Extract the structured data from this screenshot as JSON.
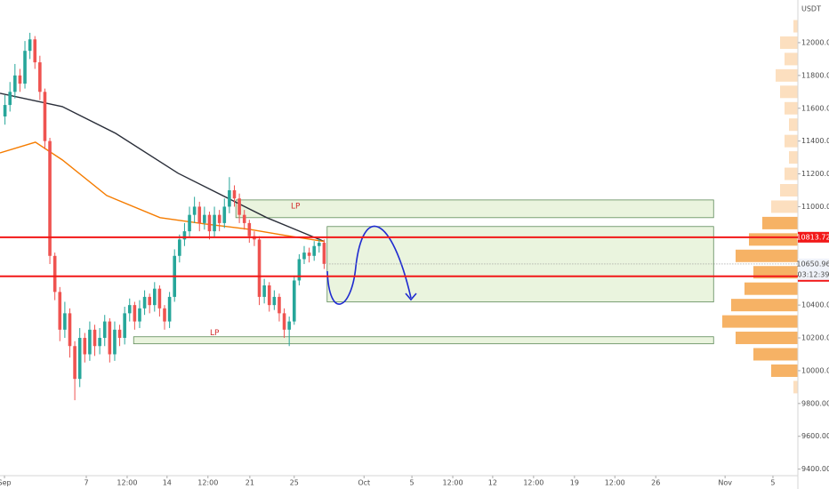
{
  "chart_data": {
    "type": "candlestick",
    "currency": "USDT",
    "xlim": [
      0,
      160
    ],
    "ylim": [
      9360,
      12260
    ],
    "xticks": [
      {
        "value": 0.9,
        "label": "Sep"
      },
      {
        "value": 17.3,
        "label": "7"
      },
      {
        "value": 25.5,
        "label": "12:00"
      },
      {
        "value": 33.5,
        "label": "14"
      },
      {
        "value": 41.7,
        "label": "12:00"
      },
      {
        "value": 50.1,
        "label": "21"
      },
      {
        "value": 59,
        "label": "25"
      },
      {
        "value": 73,
        "label": "Oct"
      },
      {
        "value": 82.6,
        "label": "5"
      },
      {
        "value": 90.8,
        "label": "12:00"
      },
      {
        "value": 98.8,
        "label": "12"
      },
      {
        "value": 107,
        "label": "12:00"
      },
      {
        "value": 115.2,
        "label": "19"
      },
      {
        "value": 123.3,
        "label": "12:00"
      },
      {
        "value": 131.5,
        "label": "26"
      },
      {
        "value": 145.4,
        "label": "Nov"
      },
      {
        "value": 155,
        "label": "5"
      }
    ],
    "yticks": [
      {
        "value": 9400,
        "label": "9400.00"
      },
      {
        "value": 9600,
        "label": "9600.00"
      },
      {
        "value": 9800,
        "label": "9800.00"
      },
      {
        "value": 10000,
        "label": "10000.00"
      },
      {
        "value": 10200,
        "label": "10200.00"
      },
      {
        "value": 10400,
        "label": "10400.00"
      },
      {
        "value": 10600,
        "label": "10600.00"
      },
      {
        "value": 10800,
        "label": "10800.00"
      },
      {
        "value": 11000,
        "label": "11000.00"
      },
      {
        "value": 11200,
        "label": "11200.00"
      },
      {
        "value": 11400,
        "label": "11400.00"
      },
      {
        "value": 11600,
        "label": "11600.00"
      },
      {
        "value": 11800,
        "label": "11800.00"
      },
      {
        "value": 12000,
        "label": "12000.00"
      }
    ],
    "up_color": "#26a69a",
    "down_color": "#ef5350",
    "x": [
      1,
      2,
      3,
      4,
      5,
      6,
      7,
      8,
      9,
      10,
      11,
      12,
      13,
      14,
      15,
      16,
      17,
      18,
      19,
      20,
      21,
      22,
      23,
      24,
      25,
      26,
      27,
      28,
      29,
      30,
      31,
      32,
      33,
      34,
      35,
      36,
      37,
      38,
      39,
      40,
      41,
      42,
      43,
      44,
      45,
      46,
      47,
      48,
      49,
      50,
      51,
      52,
      53,
      54,
      55,
      56,
      57,
      58,
      59,
      60,
      61,
      62,
      63,
      64,
      65
    ],
    "open": [
      11550,
      11620,
      11700,
      11800,
      11750,
      11950,
      12020,
      11880,
      11700,
      11400,
      10700,
      10480,
      10250,
      10350,
      10150,
      9950,
      10200,
      10100,
      10250,
      10150,
      10200,
      10300,
      10100,
      10250,
      10200,
      10350,
      10400,
      10300,
      10380,
      10450,
      10400,
      10500,
      10380,
      10300,
      10450,
      10700,
      10800,
      10850,
      10950,
      11000,
      10900,
      10950,
      10850,
      10950,
      10900,
      11000,
      11100,
      11050,
      10950,
      10900,
      10820,
      10800,
      10450,
      10520,
      10400,
      10450,
      10350,
      10250,
      10300,
      10550,
      10680,
      10720,
      10700,
      10760,
      10780
    ],
    "high": [
      11680,
      11760,
      11870,
      11840,
      12010,
      12060,
      12040,
      11920,
      11720,
      11420,
      10720,
      10510,
      10420,
      10380,
      10180,
      10260,
      10230,
      10300,
      10280,
      10260,
      10340,
      10320,
      10300,
      10280,
      10390,
      10440,
      10420,
      10430,
      10490,
      10470,
      10540,
      10520,
      10400,
      10480,
      10740,
      10830,
      10900,
      11000,
      11060,
      11030,
      11000,
      10970,
      11000,
      10980,
      11050,
      11180,
      11130,
      11080,
      10980,
      10920,
      10850,
      10820,
      10560,
      10540,
      10490,
      10470,
      10380,
      10330,
      10580,
      10710,
      10760,
      10750,
      10790,
      10810,
      10800
    ],
    "low": [
      11500,
      11580,
      11660,
      11700,
      11720,
      11900,
      11840,
      11650,
      11350,
      10650,
      10430,
      10180,
      10200,
      10080,
      9820,
      9900,
      10050,
      10060,
      10090,
      10100,
      10150,
      10050,
      10060,
      10150,
      10160,
      10300,
      10250,
      10260,
      10340,
      10350,
      10360,
      10330,
      10250,
      10260,
      10420,
      10660,
      10760,
      10810,
      10900,
      10850,
      10860,
      10800,
      10810,
      10850,
      10870,
      10960,
      11000,
      10900,
      10860,
      10780,
      10760,
      10400,
      10410,
      10360,
      10370,
      10300,
      10200,
      10150,
      10280,
      10520,
      10650,
      10660,
      10670,
      10720,
      10620
    ],
    "close": [
      11620,
      11700,
      11800,
      11750,
      11950,
      12020,
      11880,
      11700,
      11400,
      10700,
      10480,
      10250,
      10350,
      10150,
      9950,
      10200,
      10100,
      10250,
      10150,
      10200,
      10300,
      10100,
      10250,
      10200,
      10350,
      10400,
      10300,
      10380,
      10450,
      10400,
      10500,
      10380,
      10300,
      10450,
      10700,
      10800,
      10850,
      10950,
      11000,
      10900,
      10950,
      10850,
      10950,
      10900,
      11000,
      11100,
      11050,
      10950,
      10900,
      10820,
      10800,
      10450,
      10520,
      10400,
      10450,
      10350,
      10250,
      10300,
      10550,
      10680,
      10720,
      10700,
      10760,
      10780,
      10650.96
    ],
    "moving_averages": [
      {
        "color": "#2a2e39",
        "x": [
          0,
          12.5,
          23.2,
          35.7,
          46.4,
          53.5,
          65.1
        ],
        "values": [
          11691,
          11610,
          11447,
          11204,
          11041,
          10933,
          10787
        ]
      },
      {
        "color": "#f57c00",
        "x": [
          0,
          7.1,
          12.5,
          21.4,
          32.1,
          41,
          50,
          57.1,
          65.1
        ],
        "values": [
          11328,
          11393,
          11285,
          11068,
          10933,
          10895,
          10862,
          10825,
          10787
        ]
      }
    ],
    "levels": [
      {
        "value": 10813.72,
        "color": "#f21818"
      },
      {
        "value": 10575.34,
        "color": "#f21818"
      }
    ],
    "last_price": 10650.96,
    "countdown": "03:12:39",
    "zones": [
      {
        "x": [
          47.3,
          143.1
        ],
        "y": [
          10933,
          11041
        ],
        "label": "LP"
      },
      {
        "x": [
          65.6,
          143.1
        ],
        "y": [
          10419,
          10879
        ]
      },
      {
        "x": [
          26.8,
          143.1
        ],
        "y": [
          10164,
          10207
        ],
        "label": "LP"
      }
    ],
    "volume_profile": {
      "prices": [
        9900,
        10000,
        10100,
        10200,
        10300,
        10400,
        10500,
        10600,
        10700,
        10800,
        10900,
        11000,
        11100,
        11200,
        11300,
        11400,
        11500,
        11600,
        11700,
        11800,
        11900,
        12000,
        12100
      ],
      "values": [
        5,
        30,
        50,
        70,
        85,
        75,
        60,
        50,
        70,
        55,
        40,
        30,
        20,
        15,
        10,
        15,
        10,
        15,
        20,
        25,
        15,
        20,
        5
      ]
    }
  }
}
